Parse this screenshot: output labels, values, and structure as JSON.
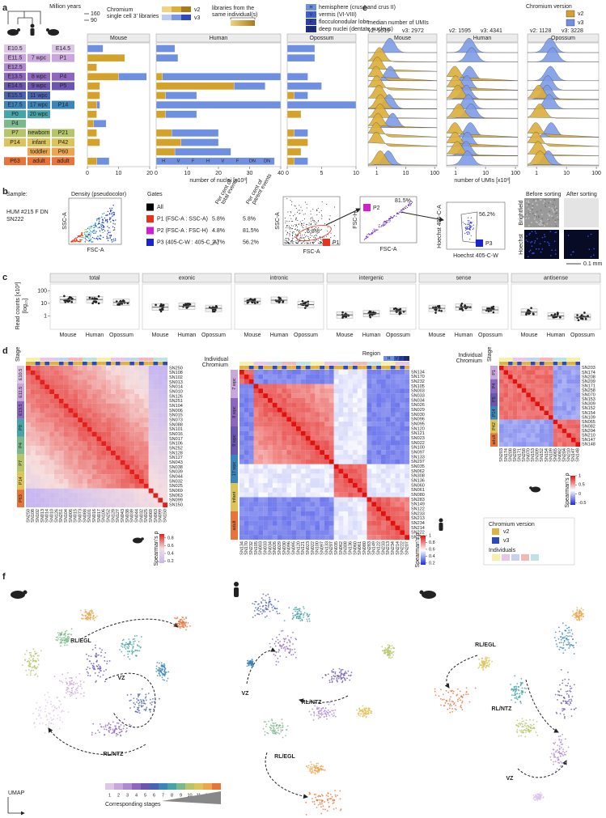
{
  "panel_letters": [
    "a",
    "b",
    "c",
    "d",
    "e",
    "f"
  ],
  "panel_a": {
    "tree_title": "Million years",
    "tree_ticks": [
      "160",
      "90"
    ],
    "chromium_legend": [
      "Chromium",
      "single cell 3' libraries"
    ],
    "versions": [
      "v2",
      "v3"
    ],
    "same_individual": [
      "libraries from the",
      "same individual(s)"
    ],
    "regions": [
      {
        "code": "H",
        "text": "hemisphere (crus I and crus II)"
      },
      {
        "code": "V",
        "text": "vermis (VI-VIII)"
      },
      {
        "code": "F",
        "text": "flocculonodular lobe"
      },
      {
        "code": "DN",
        "text": "deep nuclei (dentate nucleus)"
      }
    ],
    "stages": {
      "mouse": [
        "E10.5",
        "E11.5",
        "E12.5",
        "E13.5",
        "E14.5",
        "E15.5",
        "E17.5",
        "P0",
        "P4",
        "P7",
        "P14",
        null,
        "P63"
      ],
      "human": [
        null,
        "7 wpc",
        null,
        "8 wpc",
        "9 wpc",
        "11 wpc",
        "17 wpc",
        "20 wpc",
        null,
        "newborn",
        "infant",
        "toddler",
        "adult"
      ],
      "opossum": [
        "E14.5",
        "P1",
        null,
        "P4",
        "P5",
        null,
        "P14",
        null,
        null,
        "P21",
        "P42",
        "P60",
        "adult"
      ]
    },
    "stage_colors": [
      "#dcc7e6",
      "#c9a6dc",
      "#b088cf",
      "#8d67bf",
      "#6a55b0",
      "#4a62b5",
      "#3b86b8",
      "#46a3a6",
      "#7bb88c",
      "#b6c56a",
      "#dcc35a",
      "#eda64c",
      "#e9743a"
    ],
    "adult_region_labels": [
      "H",
      "V",
      "F",
      "H",
      "V",
      "F",
      "DN",
      "DN"
    ]
  },
  "chart_data": [
    {
      "type": "bar",
      "title": "Mouse",
      "xlim": [
        0,
        20
      ],
      "xticks": [
        0,
        10,
        20
      ],
      "series": [
        {
          "color": "#d4a12a",
          "values": [
            null,
            12,
            3,
            10,
            4,
            4,
            3,
            3,
            2,
            3,
            4,
            null,
            3
          ]
        },
        {
          "color": "#6f8fe0",
          "values": [
            5,
            null,
            null,
            9,
            null,
            null,
            1,
            null,
            4,
            null,
            null,
            null,
            4
          ]
        }
      ]
    },
    {
      "type": "bar",
      "title": "Human",
      "xlim": [
        0,
        40
      ],
      "xticks": [
        0,
        10,
        20,
        30,
        40
      ],
      "xlabel": "number of nuclei [x10³]",
      "series": [
        {
          "color": "#d4a12a",
          "values": [
            null,
            null,
            null,
            2,
            25,
            3,
            null,
            3,
            null,
            5,
            8,
            6,
            null
          ]
        },
        {
          "color": "#6f8fe0",
          "values": [
            6,
            7,
            null,
            38,
            10,
            10,
            40,
            10,
            null,
            15,
            12,
            18,
            38
          ]
        }
      ]
    },
    {
      "type": "bar",
      "title": "Opossum",
      "xlim": [
        0,
        10
      ],
      "xticks": [
        0,
        5,
        10
      ],
      "series": [
        {
          "color": "#d4a12a",
          "values": [
            null,
            null,
            null,
            null,
            null,
            1,
            null,
            2,
            null,
            1,
            3,
            2,
            1
          ]
        },
        {
          "color": "#6f8fe0",
          "values": [
            4,
            4,
            null,
            3,
            5,
            2,
            10,
            null,
            null,
            2,
            null,
            null,
            2
          ]
        }
      ]
    },
    {
      "type": "box",
      "ylabel": [
        "Read counts [x10³]",
        "[log₁₀]"
      ],
      "log_scale": true,
      "ylim": [
        0.1,
        300
      ],
      "yticks": [
        1,
        10,
        100
      ],
      "categories": [
        "Mouse",
        "Human",
        "Opossum"
      ],
      "facets": [
        {
          "name": "total",
          "values": [
            20,
            20,
            12
          ]
        },
        {
          "name": "exonic",
          "values": [
            5,
            6,
            4
          ]
        },
        {
          "name": "intronic",
          "values": [
            15,
            18,
            8
          ]
        },
        {
          "name": "intergenic",
          "values": [
            1.2,
            1.5,
            2.5
          ]
        },
        {
          "name": "sense",
          "values": [
            4,
            5,
            3
          ]
        },
        {
          "name": "antisense",
          "values": [
            2,
            1,
            0.8
          ]
        }
      ]
    }
  ],
  "panel_b": {
    "sample_label": "Sample:",
    "sample": [
      "HUM #215 F DN",
      "SN222"
    ],
    "density_title": "Density (pseudocolor)",
    "gates_title": "Gates",
    "gates": [
      {
        "name": "All",
        "color": "#000000"
      },
      {
        "name": "P1 (FSC-A : SSC-A)",
        "color": "#e8321e",
        "total": "5.8%",
        "parent": "5.8%",
        "code": "P1"
      },
      {
        "name": "P2 (FSC-A : FSC-H)",
        "color": "#d21fd6",
        "total": "4.8%",
        "parent": "81.5%",
        "code": "P2"
      },
      {
        "name": "P3 (405-C-W : 405-C_A)",
        "color": "#1a23d0",
        "total": "2.7%",
        "parent": "56.2%",
        "code": "P3"
      }
    ],
    "col_headers": [
      [
        "Per cent of",
        "total events"
      ],
      [
        "Per cent of",
        "parent events"
      ]
    ],
    "axes": {
      "ssc": "SSC-A",
      "fsc": "FSC-A",
      "fsch": "FSC-H",
      "hoechst_a": "Hoechst 405-C-A",
      "hoechst_w": "Hoechst 405-C-W"
    },
    "images": {
      "before": "Before sorting",
      "after": "After sorting",
      "brightfield": "Brightfield",
      "hoechst": "Hoechst",
      "scale": "0.1 mm"
    }
  },
  "panel_d": {
    "header": {
      "stage": "Stage",
      "individual": "Individual",
      "chromium": "Chromium",
      "region": "Region"
    },
    "mouse": {
      "samples": [
        "SN250",
        "SN108",
        "SN102",
        "SN013",
        "SN014",
        "SN010",
        "SN126",
        "SN251",
        "SN104",
        "SN006",
        "SN015",
        "SN073",
        "SN088",
        "SN101",
        "SN016",
        "SN017",
        "SN106",
        "SN252",
        "SN128",
        "SN127",
        "SN043",
        "SN038",
        "SN039",
        "SN044",
        "SN032",
        "SN025",
        "SN069",
        "SN063",
        "SN099",
        "SN150"
      ],
      "stages": [
        "E10.5",
        "E11.5",
        "E13.5",
        "P0",
        "P4",
        "P7",
        "P14",
        "P63"
      ],
      "colorbar": {
        "label": "Spearman's ρ",
        "lim": [
          0.15,
          0.9
        ],
        "ticks": [
          0.2,
          0.4,
          0.6,
          0.8
        ]
      }
    },
    "human": {
      "samples": [
        "SN134",
        "SN170",
        "SN232",
        "SN105",
        "SN003",
        "SN033",
        "SN034",
        "SN026",
        "SN029",
        "SN030",
        "SN096",
        "SN095",
        "SN120",
        "SN121",
        "SN023",
        "SN022",
        "SN100",
        "SN097",
        "SN133",
        "SN297",
        "SN035",
        "SN062",
        "SN308",
        "SN136",
        "SN060",
        "SN061",
        "SN080",
        "SN283",
        "SN149",
        "SN122",
        "SN233",
        "SN213",
        "SN234",
        "SN214",
        "SN222",
        "SN207"
      ],
      "stages": [
        "7 wpc",
        "8 wpc",
        "9 wpc",
        "17 wpc",
        "infant",
        "adult"
      ],
      "colorbar": {
        "label": "Spearman's ρ",
        "lim": [
          0.15,
          1
        ],
        "ticks": [
          0.2,
          0.4,
          0.6,
          0.8,
          1
        ]
      }
    },
    "opossum": {
      "samples": [
        "SN203",
        "SN174",
        "SN208",
        "SN209",
        "SN171",
        "SN258",
        "SN070",
        "SN153",
        "SN309",
        "SN152",
        "SN154",
        "SN109",
        "SN065",
        "SN082",
        "SN204",
        "SN210",
        "SN147",
        "SN148"
      ],
      "stages": [
        "P1",
        "P4",
        "P5",
        "P14",
        "P42",
        "adult"
      ],
      "colorbar": {
        "label": "Spearman's ρ",
        "lim": [
          -0.6,
          1
        ],
        "ticks": [
          -0.5,
          0,
          0.5,
          1
        ]
      }
    },
    "legend": {
      "title": "Chromium version",
      "individuals": "Individuals"
    }
  },
  "panel_e": {
    "median_title": "median number of UMIs",
    "medians": {
      "mouse": [
        "v2: 1019",
        "v3: 2972"
      ],
      "human": [
        "v2: 1595",
        "v3: 4341"
      ],
      "opossum": [
        "v2: 1128",
        "v3: 3228"
      ]
    },
    "legend_title": "Chromium version",
    "facets": [
      "Mouse",
      "Human",
      "Opossum"
    ],
    "xlim": [
      0.5,
      120
    ],
    "xticks": [
      1,
      10,
      100
    ],
    "xlabel": "number of UMIs [x10³]"
  },
  "panel_f": {
    "mouse": [
      "RL/EGL",
      "VZ",
      "RL/NTZ"
    ],
    "human": [
      "VZ",
      "RL/NTZ",
      "RL/EGL"
    ],
    "opossum": [
      "RL/EGL",
      "RL/NTZ",
      "VZ"
    ],
    "stage_numbers": [
      1,
      2,
      3,
      4,
      5,
      6,
      7,
      8,
      9,
      10,
      11,
      12,
      13
    ],
    "stage_title": "Corresponding stages",
    "axis": "UMAP"
  }
}
